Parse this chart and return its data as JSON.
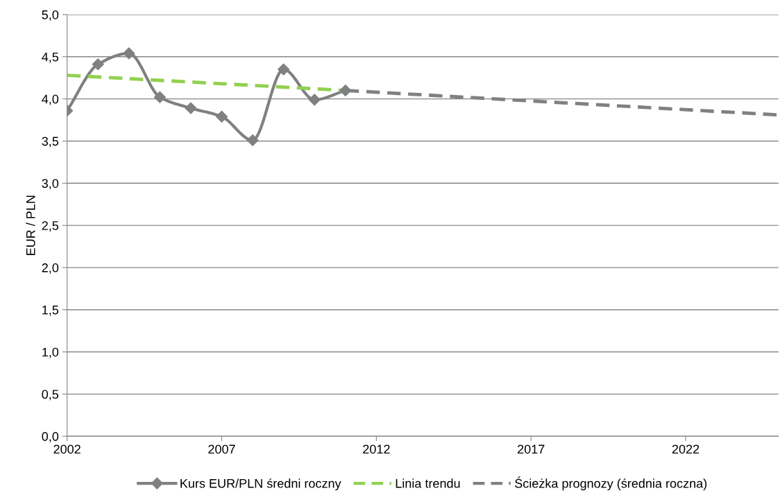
{
  "chart_data": {
    "type": "line",
    "ylabel": "EUR / PLN",
    "xlim": [
      2002,
      2025
    ],
    "xticks": [
      2002,
      2007,
      2012,
      2017,
      2022
    ],
    "ylim": [
      0,
      5
    ],
    "yticks": [
      {
        "value": 0,
        "label": "0,0"
      },
      {
        "value": 0.5,
        "label": "0,5"
      },
      {
        "value": 1,
        "label": "1,0"
      },
      {
        "value": 1.5,
        "label": "1,5"
      },
      {
        "value": 2,
        "label": "2,0"
      },
      {
        "value": 2.5,
        "label": "2,5"
      },
      {
        "value": 3,
        "label": "3,0"
      },
      {
        "value": 3.5,
        "label": "3,5"
      },
      {
        "value": 4,
        "label": "4,0"
      },
      {
        "value": 4.5,
        "label": "4,5"
      },
      {
        "value": 5,
        "label": "5,0"
      }
    ],
    "grid": "y",
    "legend": "bottom",
    "series": [
      {
        "name": "Kurs EUR/PLN średni roczny",
        "color": "#808080",
        "marker": "diamond",
        "line_style": "solid",
        "x": [
          2002,
          2003,
          2004,
          2005,
          2006,
          2007,
          2008,
          2009,
          2010,
          2011
        ],
        "values": [
          3.86,
          4.41,
          4.54,
          4.02,
          3.89,
          3.79,
          3.51,
          4.35,
          3.99,
          4.1
        ]
      },
      {
        "name": "Linia trendu",
        "color": "#92d050",
        "marker": "none",
        "line_style": "dashed",
        "x": [
          2002,
          2011
        ],
        "values": [
          4.28,
          4.1
        ]
      },
      {
        "name": "Ścieżka prognozy (średnia roczna)",
        "color": "#808080",
        "marker": "none",
        "line_style": "dashed",
        "x": [
          2011,
          2025
        ],
        "values": [
          4.1,
          3.81
        ]
      }
    ]
  }
}
